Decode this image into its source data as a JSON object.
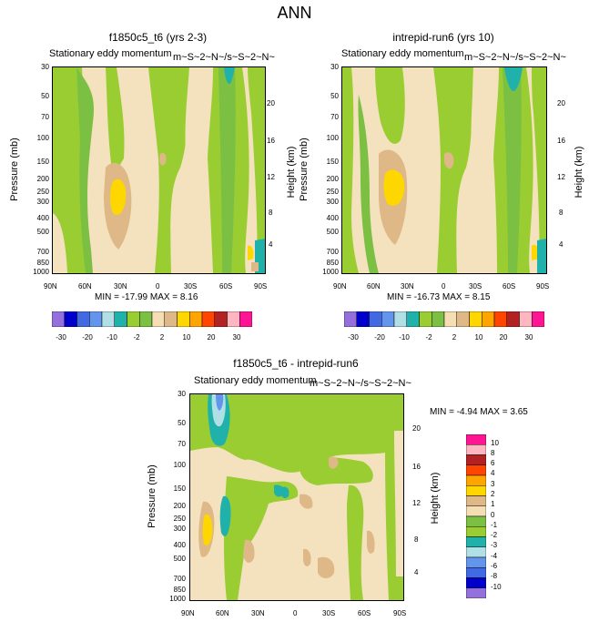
{
  "main_title": "ANN",
  "colors": {
    "palette": [
      "#9370db",
      "#0000cd",
      "#4169e1",
      "#6495ed",
      "#b0e0e6",
      "#20b2aa",
      "#9acd32",
      "#7bc043",
      "#f5deb3",
      "#deb887",
      "#ffd700",
      "#ffa500",
      "#ff4500",
      "#b22222",
      "#ffb6c1",
      "#ff1493"
    ],
    "diff_palette": [
      "#9370db",
      "#0000cd",
      "#4169e1",
      "#6495ed",
      "#b0e0e6",
      "#20b2aa",
      "#9acd32",
      "#7bc043",
      "#f5deb3",
      "#deb887",
      "#ffd700",
      "#ffa500",
      "#ff4500",
      "#b22222",
      "#ffb6c1",
      "#ff1493"
    ]
  },
  "panels": [
    {
      "title": "f1850c5_t6 (yrs 2-3)",
      "subtitle": "Stationary eddy momentum",
      "subtitle_extra": "m~S~2~N~/s~S~2~N~",
      "min_max": "MIN = -17.99  MAX =   8.16",
      "ylabel": "Pressure (mb)",
      "ylabel_right": "Height (km)"
    },
    {
      "title": "intrepid-run6 (yrs 10)",
      "subtitle": "Stationary eddy momentum",
      "subtitle_extra": "m~S~2~N~/s~S~2~N~",
      "min_max": "MIN = -16.73  MAX =   8.15",
      "ylabel": "Pressure (mb)",
      "ylabel_right": "Height (km)"
    },
    {
      "title": "f1850c5_t6 - intrepid-run6",
      "subtitle": "Stationary eddy momentum",
      "subtitle_extra": "m~S~2~N~/s~S~2~N~",
      "min_max": "MIN =  -4.94  MAX =   3.65",
      "ylabel": "Pressure (mb)",
      "ylabel_right": "Height (km)"
    }
  ],
  "axes": {
    "pressure_ticks": [
      "30",
      "50",
      "70",
      "100",
      "150",
      "200",
      "250",
      "300",
      "400",
      "500",
      "700",
      "850",
      "1000"
    ],
    "height_ticks": [
      "20",
      "16",
      "12",
      "8",
      "4"
    ],
    "lat_ticks": [
      "90N",
      "60N",
      "30N",
      "0",
      "30S",
      "60S",
      "90S"
    ]
  },
  "colorbar_main": {
    "labels": [
      "-30",
      "-20",
      "-10",
      "-2",
      "2",
      "10",
      "20",
      "30"
    ]
  },
  "colorbar_diff": {
    "labels": [
      "10",
      "8",
      "6",
      "4",
      "3",
      "2",
      "1",
      "0",
      "-1",
      "-2",
      "-3",
      "-4",
      "-6",
      "-8",
      "-10"
    ]
  },
  "chart_data": [
    {
      "type": "heatmap",
      "title": "f1850c5_t6 (yrs 2-3)",
      "subtitle": "Stationary eddy momentum",
      "xlabel": "",
      "ylabel": "Pressure (mb)",
      "x_ticks": [
        "90N",
        "60N",
        "30N",
        "0",
        "30S",
        "60S",
        "90S"
      ],
      "y_ticks": [
        30,
        50,
        70,
        100,
        150,
        200,
        250,
        300,
        400,
        500,
        700,
        850,
        1000
      ],
      "ylim": [
        1000,
        30
      ],
      "min": -17.99,
      "max": 8.16,
      "contour_levels": [
        -30,
        -20,
        -10,
        -2,
        2,
        10,
        20,
        30
      ]
    },
    {
      "type": "heatmap",
      "title": "intrepid-run6 (yrs 10)",
      "subtitle": "Stationary eddy momentum",
      "xlabel": "",
      "ylabel": "Pressure (mb)",
      "x_ticks": [
        "90N",
        "60N",
        "30N",
        "0",
        "30S",
        "60S",
        "90S"
      ],
      "y_ticks": [
        30,
        50,
        70,
        100,
        150,
        200,
        250,
        300,
        400,
        500,
        700,
        850,
        1000
      ],
      "ylim": [
        1000,
        30
      ],
      "min": -16.73,
      "max": 8.15,
      "contour_levels": [
        -30,
        -20,
        -10,
        -2,
        2,
        10,
        20,
        30
      ]
    },
    {
      "type": "heatmap",
      "title": "f1850c5_t6 - intrepid-run6",
      "subtitle": "Stationary eddy momentum",
      "xlabel": "",
      "ylabel": "Pressure (mb)",
      "x_ticks": [
        "90N",
        "60N",
        "30N",
        "0",
        "30S",
        "60S",
        "90S"
      ],
      "y_ticks": [
        30,
        50,
        70,
        100,
        150,
        200,
        250,
        300,
        400,
        500,
        700,
        850,
        1000
      ],
      "ylim": [
        1000,
        30
      ],
      "min": -4.94,
      "max": 3.65,
      "contour_levels": [
        -10,
        -8,
        -6,
        -4,
        -3,
        -2,
        -1,
        0,
        1,
        2,
        3,
        4,
        6,
        8,
        10
      ]
    }
  ]
}
